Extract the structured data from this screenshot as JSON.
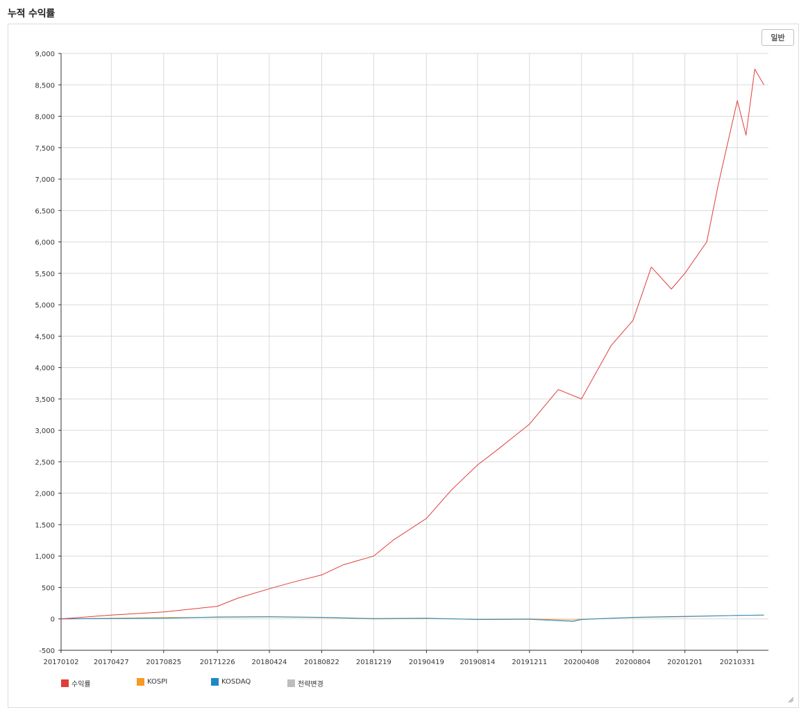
{
  "page": {
    "title": "누적 수익률"
  },
  "toolbar": {
    "mode_label": "일반"
  },
  "colors": {
    "series_return": "#e03c3c",
    "series_kospi": "#f59a23",
    "series_kosdaq": "#1e88c7",
    "series_strategy_change": "#bdbdbd",
    "grid": "#d9d9d9",
    "axis": "#333333"
  },
  "icons": {
    "resize": "resize-grip-icon"
  },
  "chart_data": {
    "type": "line",
    "title": "누적 수익률",
    "xlabel": "",
    "ylabel": "",
    "ylim": [
      -500,
      9000
    ],
    "grid": true,
    "legend_position": "bottom-left",
    "x_ticks": [
      "20170102",
      "20170427",
      "20170825",
      "20171226",
      "20180424",
      "20180822",
      "20181219",
      "20190419",
      "20190814",
      "20191211",
      "20200408",
      "20200804",
      "20201201",
      "20210331"
    ],
    "y_ticks": [
      -500,
      0,
      500,
      1000,
      1500,
      2000,
      2500,
      3000,
      3500,
      4000,
      4500,
      5000,
      5500,
      6000,
      6500,
      7000,
      7500,
      8000,
      8500,
      9000
    ],
    "y_tick_labels": [
      "-500",
      "0",
      "500",
      "1,000",
      "1,500",
      "2,000",
      "2,500",
      "3,000",
      "3,500",
      "4,000",
      "4,500",
      "5,000",
      "5,500",
      "6,000",
      "6,500",
      "7,000",
      "7,500",
      "8,000",
      "8,500",
      "9,000"
    ],
    "legend": [
      "수익률",
      "KOSPI",
      "KOSDAQ",
      "전략변경"
    ],
    "series": [
      {
        "name": "수익률",
        "color": "#e03c3c",
        "x": [
          "20170102",
          "20170427",
          "20170825",
          "20171226",
          "20180211",
          "20180424",
          "20180615",
          "20180822",
          "20181010",
          "20181219",
          "20190201",
          "20190419",
          "20190615",
          "20190814",
          "20190930",
          "20191211",
          "20200215",
          "20200408",
          "20200615",
          "20200804",
          "20200915",
          "20201031",
          "20201201",
          "20210120",
          "20210215",
          "20210331",
          "20210420",
          "20210510",
          "20210531"
        ],
        "values": [
          0,
          60,
          110,
          200,
          330,
          480,
          580,
          700,
          860,
          1000,
          1250,
          1600,
          2050,
          2450,
          2700,
          3100,
          3650,
          3500,
          4350,
          4750,
          5600,
          5250,
          5500,
          6000,
          6900,
          8250,
          7700,
          8750,
          8500
        ]
      },
      {
        "name": "KOSPI",
        "color": "#f59a23",
        "x": [
          "20170102",
          "20170427",
          "20170825",
          "20171226",
          "20180424",
          "20180822",
          "20181219",
          "20190419",
          "20190814",
          "20191211",
          "20200320",
          "20200408",
          "20200804",
          "20201201",
          "20210331",
          "20210531"
        ],
        "values": [
          0,
          10,
          20,
          25,
          30,
          20,
          0,
          5,
          -5,
          0,
          -20,
          -5,
          20,
          35,
          55,
          60
        ]
      },
      {
        "name": "KOSDAQ",
        "color": "#1e88c7",
        "x": [
          "20170102",
          "20170427",
          "20170825",
          "20171226",
          "20180424",
          "20180822",
          "20181219",
          "20190419",
          "20190814",
          "20191211",
          "20200320",
          "20200408",
          "20200804",
          "20201201",
          "20210331",
          "20210531"
        ],
        "values": [
          0,
          5,
          10,
          30,
          35,
          25,
          5,
          10,
          -10,
          -5,
          -40,
          -10,
          25,
          40,
          55,
          60
        ]
      },
      {
        "name": "전략변경",
        "color": "#bdbdbd",
        "x": [],
        "values": []
      }
    ]
  }
}
